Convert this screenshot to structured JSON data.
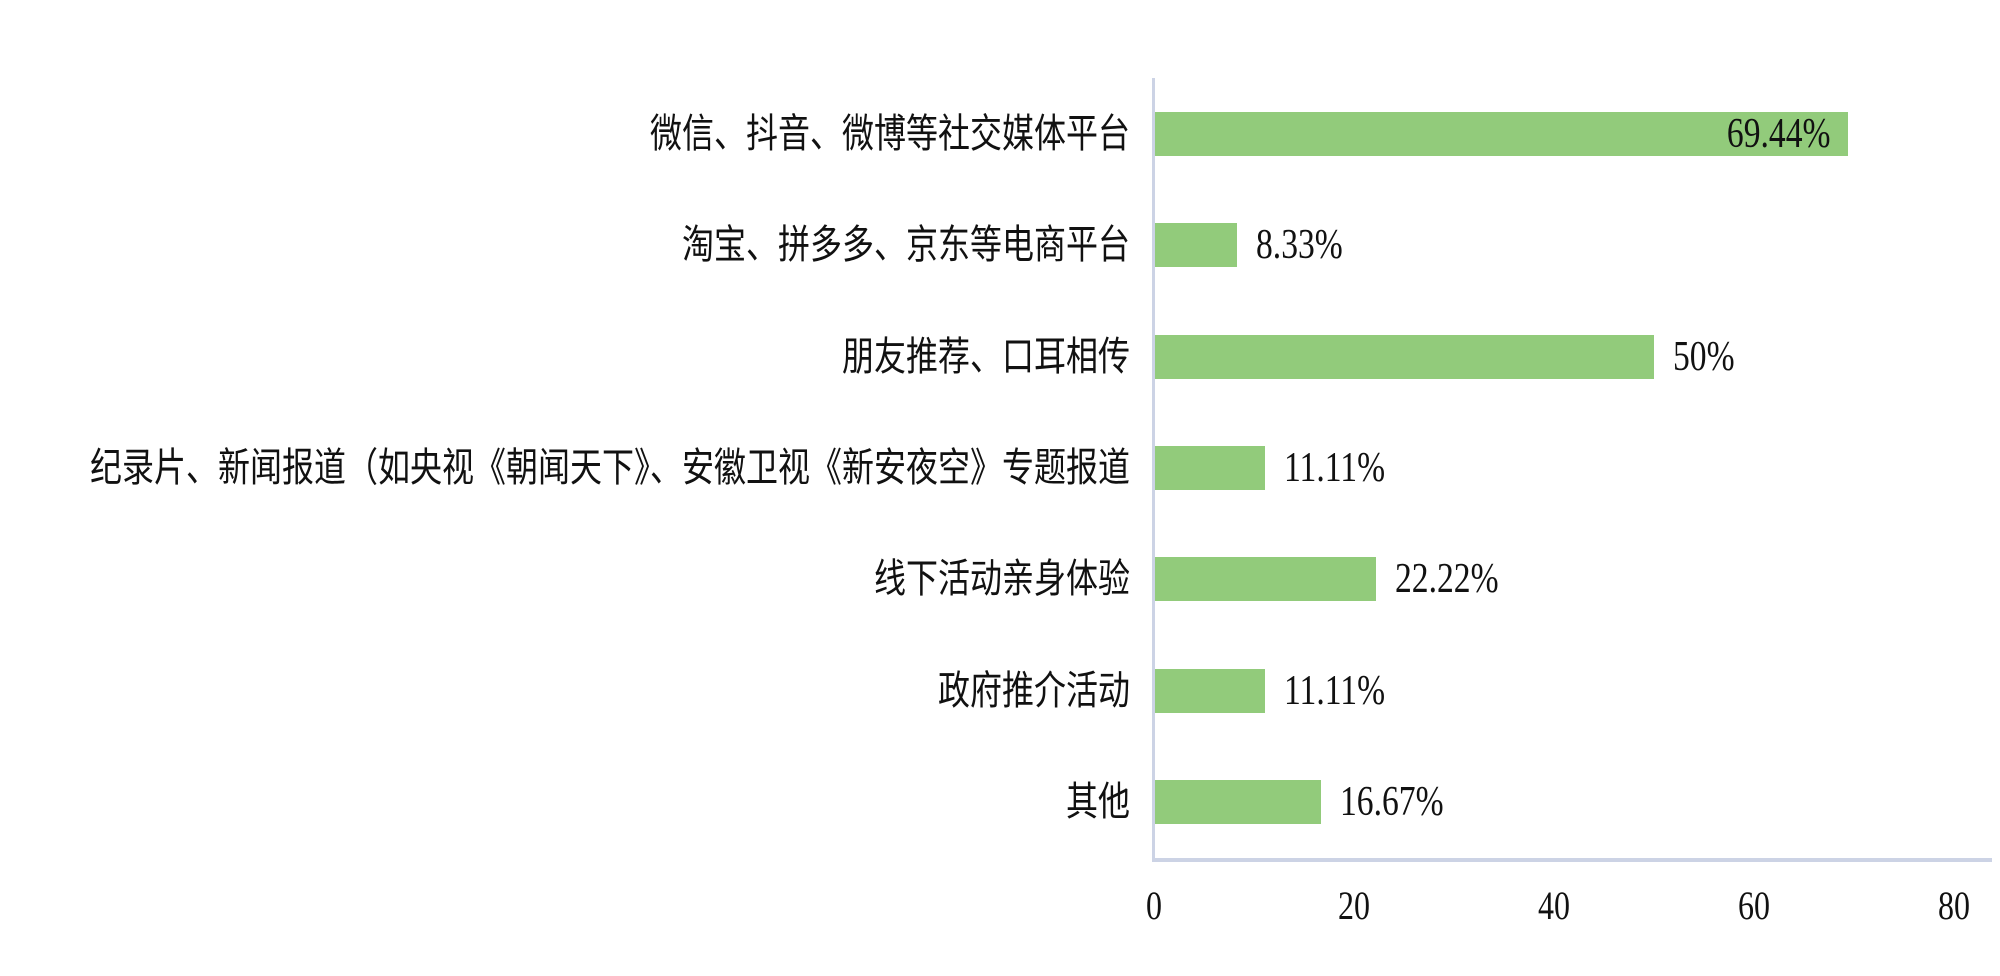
{
  "chart_data": {
    "type": "bar",
    "orientation": "horizontal",
    "title": "",
    "xlabel": "",
    "ylabel": "",
    "categories": [
      "微信、抖音、微博等社交媒体平台",
      "淘宝、拼多多、京东等电商平台",
      "朋友推荐、口耳相传",
      "纪录片、新闻报道（如央视《朝闻天下》、安徽卫视《新安夜空》专题报道",
      "线下活动亲身体验",
      "政府推介活动",
      "其他"
    ],
    "values": [
      69.44,
      8.33,
      50,
      11.11,
      22.22,
      11.11,
      16.67
    ],
    "value_labels": [
      "69.44%",
      "8.33%",
      "50%",
      "11.11%",
      "22.22%",
      "11.11%",
      "16.67%"
    ],
    "value_label_inside": [
      true,
      false,
      false,
      false,
      false,
      false,
      false
    ],
    "xlim": [
      0,
      80
    ],
    "x_ticks": [
      0,
      20,
      40,
      60,
      80
    ],
    "grid": false,
    "legend": "none",
    "bar_color": "#92cb7b",
    "axis_line_color": "#ccd3e5",
    "text_color": "#111111",
    "background_color": "#ffffff"
  }
}
